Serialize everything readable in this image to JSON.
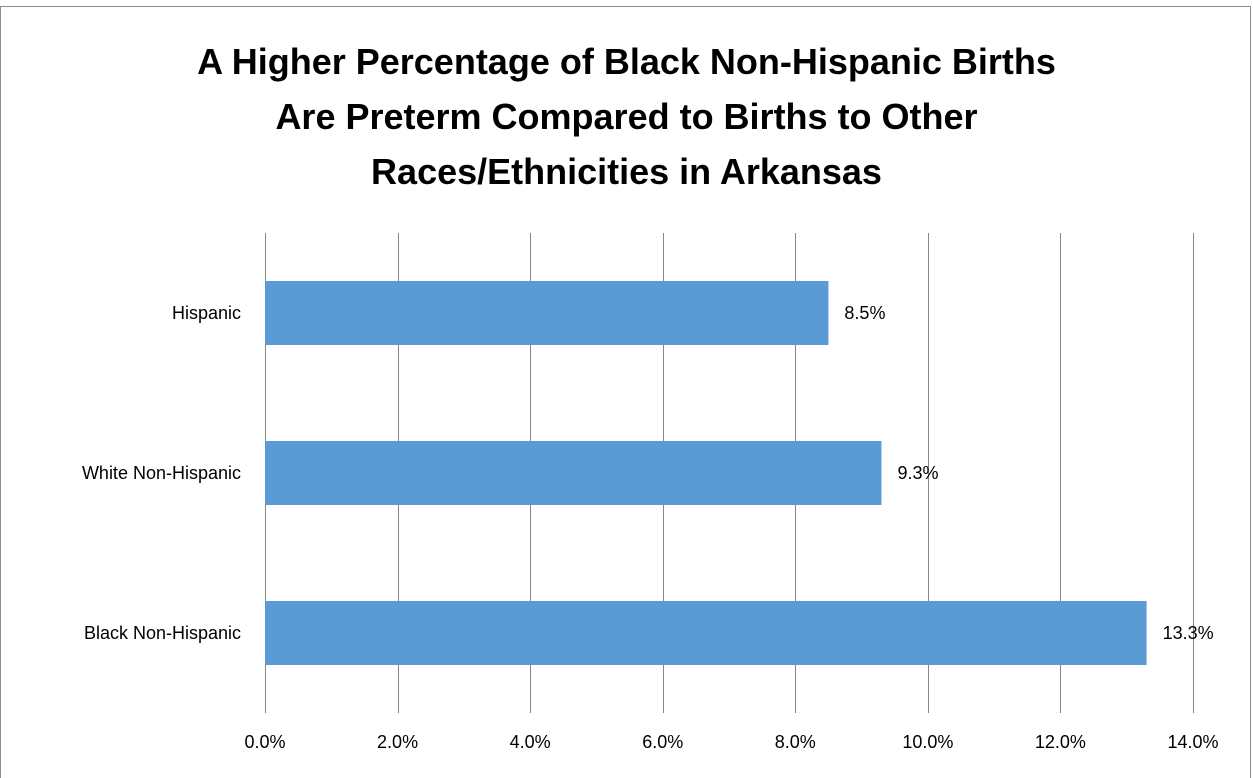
{
  "chart_data": {
    "type": "bar",
    "orientation": "horizontal",
    "title_lines": [
      "A Higher Percentage of Black Non-Hispanic Births",
      "Are Preterm Compared to Births to Other",
      "Races/Ethnicities in Arkansas"
    ],
    "categories": [
      "Hispanic",
      "White Non-Hispanic",
      "Black Non-Hispanic"
    ],
    "values": [
      8.5,
      9.3,
      13.3
    ],
    "data_labels": [
      "8.5%",
      "9.3%",
      "13.3%"
    ],
    "xlim": [
      0,
      14
    ],
    "x_ticks": [
      0,
      2,
      4,
      6,
      8,
      10,
      12,
      14
    ],
    "x_tick_labels": [
      "0.0%",
      "2.0%",
      "4.0%",
      "6.0%",
      "8.0%",
      "10.0%",
      "12.0%",
      "14.0%"
    ],
    "xlabel": "",
    "ylabel": "",
    "grid": "vertical",
    "legend": "none",
    "bar_color": "#5b9bd5",
    "grid_color": "#868686"
  }
}
